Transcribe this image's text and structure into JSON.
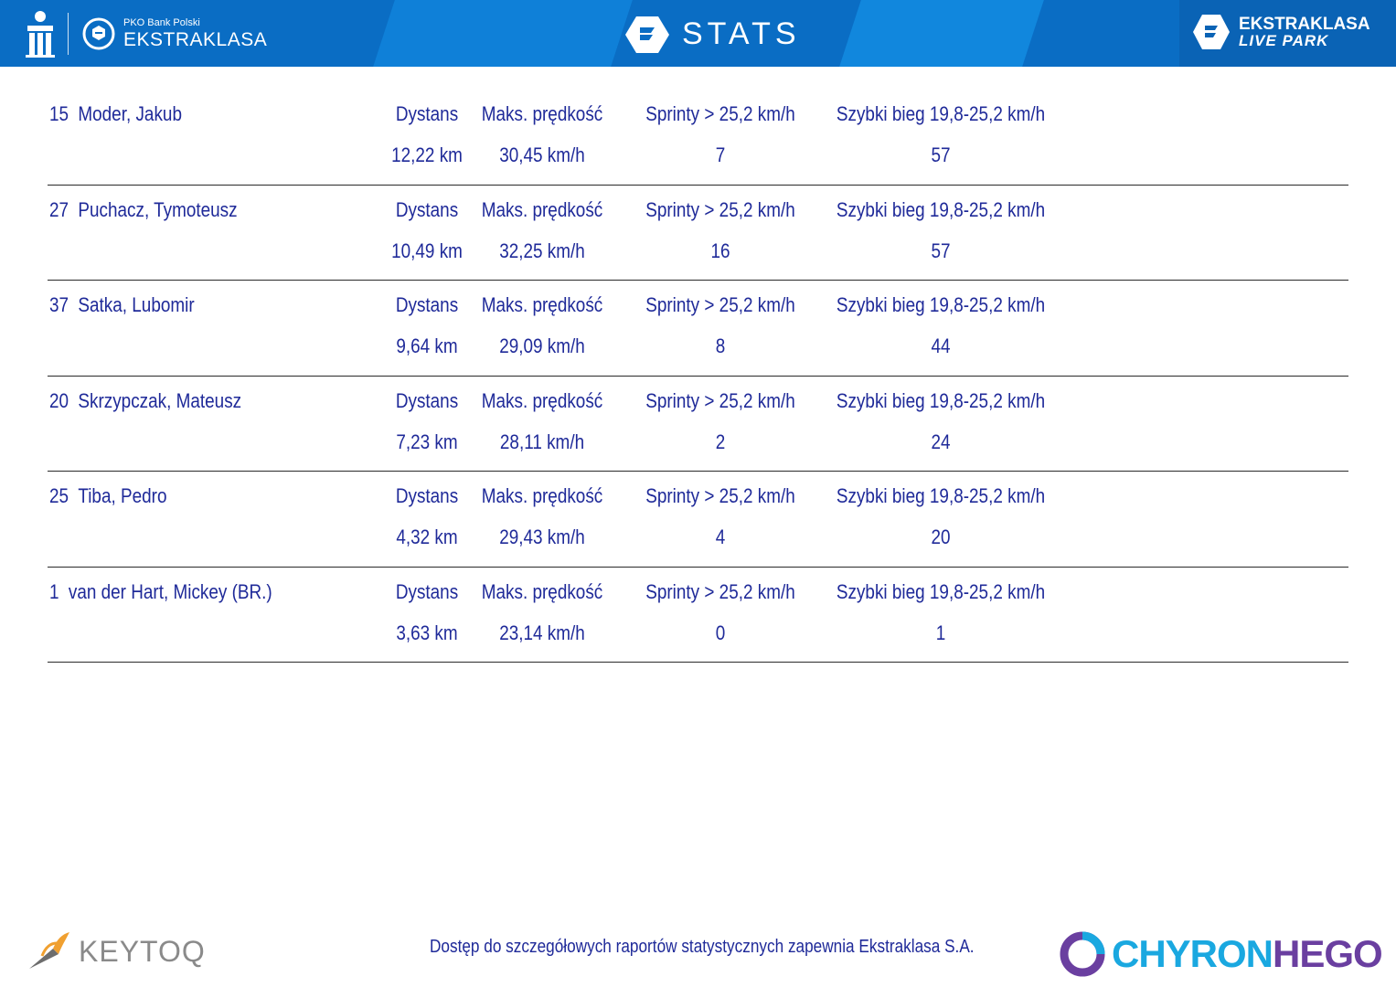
{
  "header": {
    "sponsor_small": "PKO Bank Polski",
    "league_name": "EKSTRAKLASA",
    "title": "STATS",
    "right_logo_top": "EKSTRAKLASA",
    "right_logo_bottom": "LIVE PARK",
    "color": "#0a6dc4"
  },
  "columns": {
    "distance": "Dystans",
    "max_speed": "Maks. prędkość",
    "sprints": "Sprinty > 25,2 km/h",
    "fast_runs": "Szybki bieg 19,8-25,2 km/h"
  },
  "players": [
    {
      "number": "15",
      "name": "Moder, Jakub",
      "distance": "12,22 km",
      "max_speed": "30,45 km/h",
      "sprints": "7",
      "fast_runs": "57"
    },
    {
      "number": "27",
      "name": "Puchacz, Tymoteusz",
      "distance": "10,49 km",
      "max_speed": "32,25 km/h",
      "sprints": "16",
      "fast_runs": "57"
    },
    {
      "number": "37",
      "name": "Satka, Lubomir",
      "distance": "9,64 km",
      "max_speed": "29,09 km/h",
      "sprints": "8",
      "fast_runs": "44"
    },
    {
      "number": "20",
      "name": "Skrzypczak, Mateusz",
      "distance": "7,23 km",
      "max_speed": "28,11 km/h",
      "sprints": "2",
      "fast_runs": "24"
    },
    {
      "number": "25",
      "name": "Tiba, Pedro",
      "distance": "4,32 km",
      "max_speed": "29,43 km/h",
      "sprints": "4",
      "fast_runs": "20"
    },
    {
      "number": "1",
      "name": "van der Hart, Mickey (BR.)",
      "distance": "3,63 km",
      "max_speed": "23,14 km/h",
      "sprints": "0",
      "fast_runs": "1"
    }
  ],
  "footer": {
    "note": "Dostęp do szczegółowych raportów statystycznych zapewnia Ekstraklasa S.A.",
    "left_logo": "KEYTOQ",
    "right_logo_a": "CHYRON",
    "right_logo_b": "HEGO"
  }
}
